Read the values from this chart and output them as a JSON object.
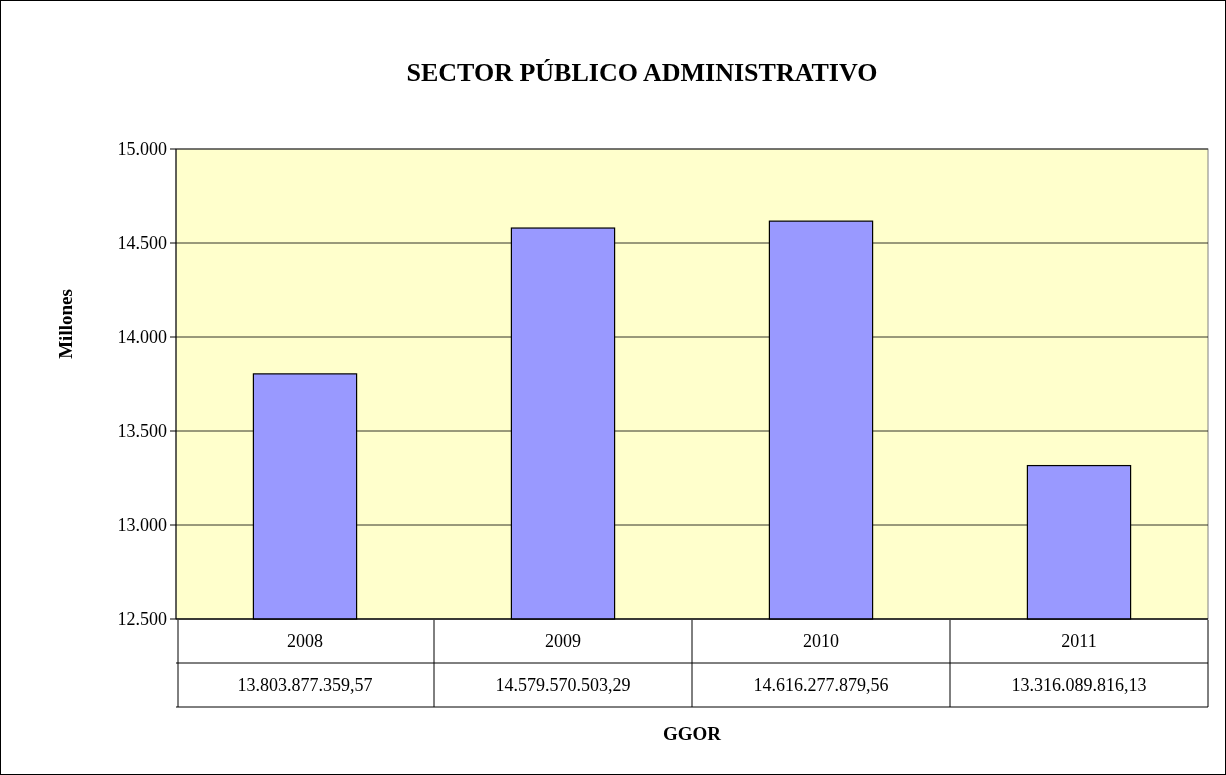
{
  "chart_data": {
    "type": "bar",
    "title": "SECTOR PÚBLICO ADMINISTRATIVO",
    "xlabel": "GGOR",
    "ylabel": "Millones",
    "categories": [
      "2008",
      "2009",
      "2010",
      "2011"
    ],
    "values": [
      13803.88,
      14579.57,
      14616.28,
      13316.09
    ],
    "annotations": [
      "13.803.877.359,57",
      "14.579.570.503,29",
      "14.616.277.879,56",
      "13.316.089.816,13"
    ],
    "color": "#9999ff",
    "ylim": [
      12500,
      15000
    ],
    "yticks": [
      {
        "value": 12500,
        "label": "12.500"
      },
      {
        "value": 13000,
        "label": "13.000"
      },
      {
        "value": 13500,
        "label": "13.500"
      },
      {
        "value": 14000,
        "label": "14.000"
      },
      {
        "value": 14500,
        "label": "14.500"
      },
      {
        "value": 15000,
        "label": "15.000"
      }
    ],
    "grid": "y"
  }
}
